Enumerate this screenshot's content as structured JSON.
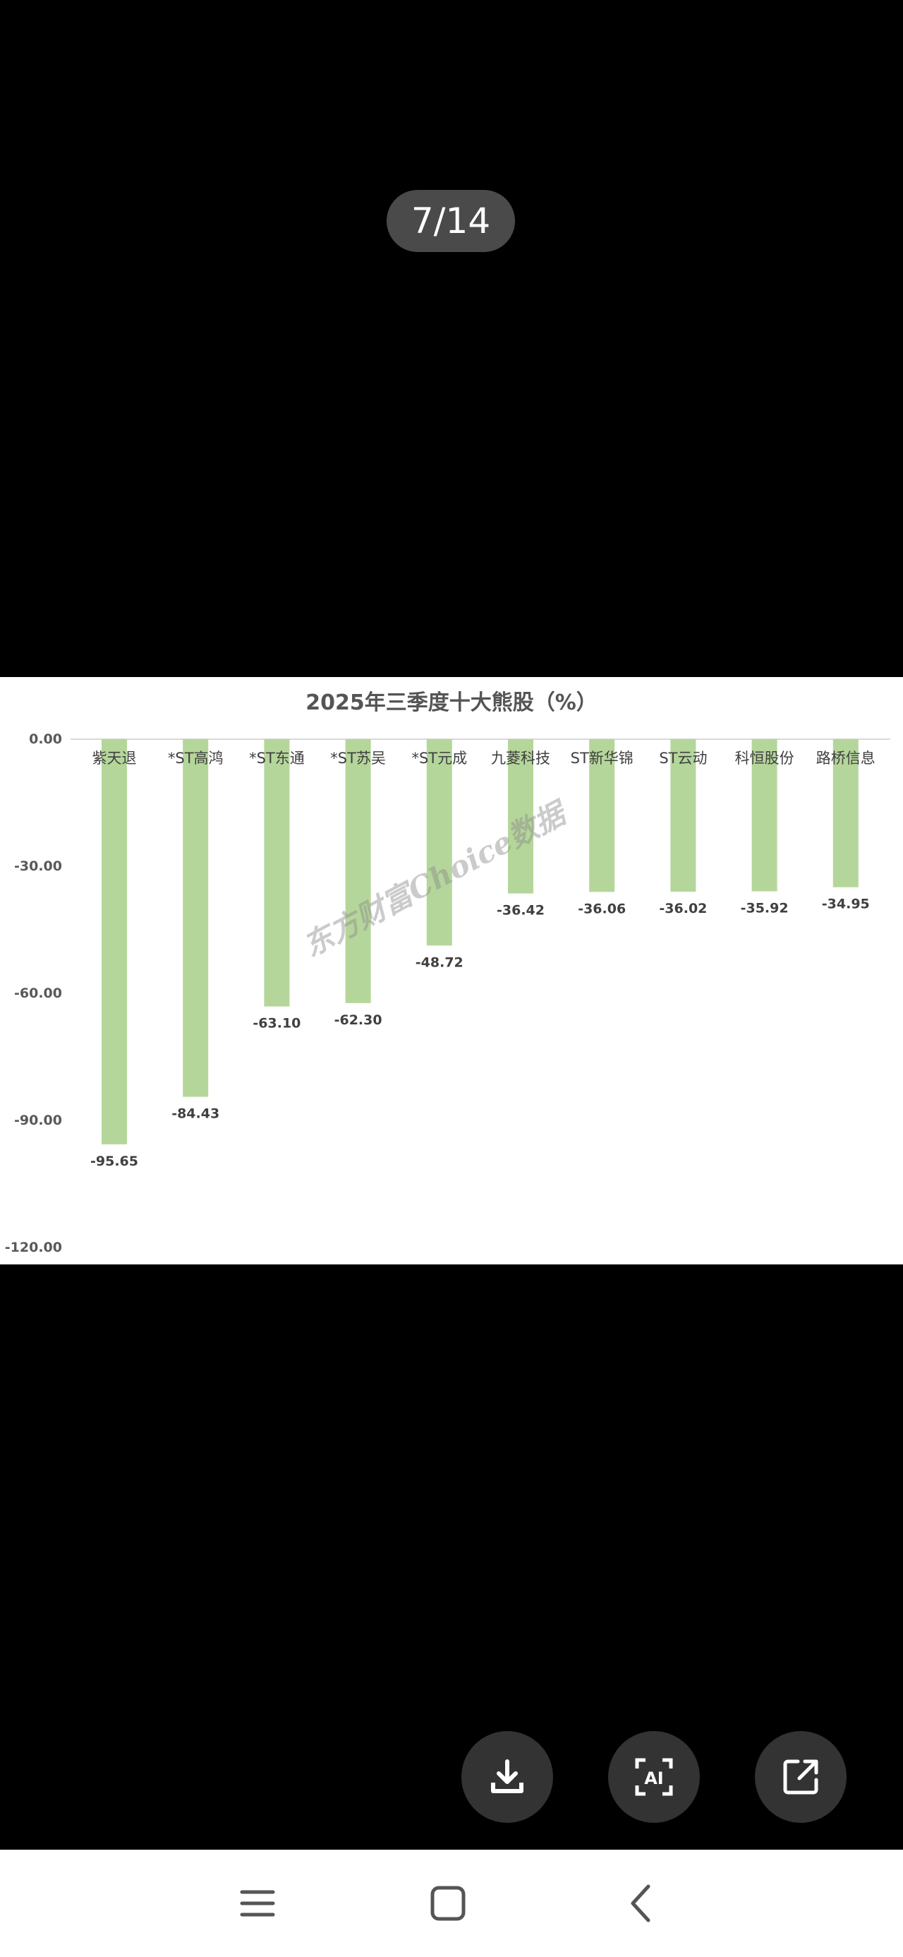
{
  "viewer": {
    "page_indicator": "7/14",
    "buttons": [
      {
        "name": "download-button",
        "icon": "download-icon"
      },
      {
        "name": "ai-scan-button",
        "icon": "ai-scan-icon",
        "label": "AI"
      },
      {
        "name": "share-button",
        "icon": "share-icon"
      }
    ]
  },
  "watermark": "东方财富Choice数据",
  "chart_data": {
    "type": "bar",
    "title": "2025年三季度十大熊股（%）",
    "categories": [
      "紫天退",
      "*ST高鸿",
      "*ST东通",
      "*ST苏吴",
      "*ST元成",
      "九菱科技",
      "ST新华锦",
      "ST云动",
      "科恒股份",
      "路桥信息"
    ],
    "values": [
      -95.65,
      -84.43,
      -63.1,
      -62.3,
      -48.72,
      -36.42,
      -36.06,
      -36.02,
      -35.92,
      -34.95
    ],
    "value_labels": [
      "-95.65",
      "-84.43",
      "-63.10",
      "-62.30",
      "-48.72",
      "-36.42",
      "-36.06",
      "-36.02",
      "-35.92",
      "-34.95"
    ],
    "yticks": [
      "0.00",
      "-30.00",
      "-60.00",
      "-90.00",
      "-120.00"
    ],
    "ylim": [
      -120,
      0
    ],
    "bar_color": "#b5d69a",
    "grid": false
  },
  "nav": {
    "items": [
      {
        "name": "nav-menu-button",
        "icon": "menu-icon"
      },
      {
        "name": "nav-home-button",
        "icon": "home-icon"
      },
      {
        "name": "nav-back-button",
        "icon": "back-icon"
      }
    ]
  }
}
